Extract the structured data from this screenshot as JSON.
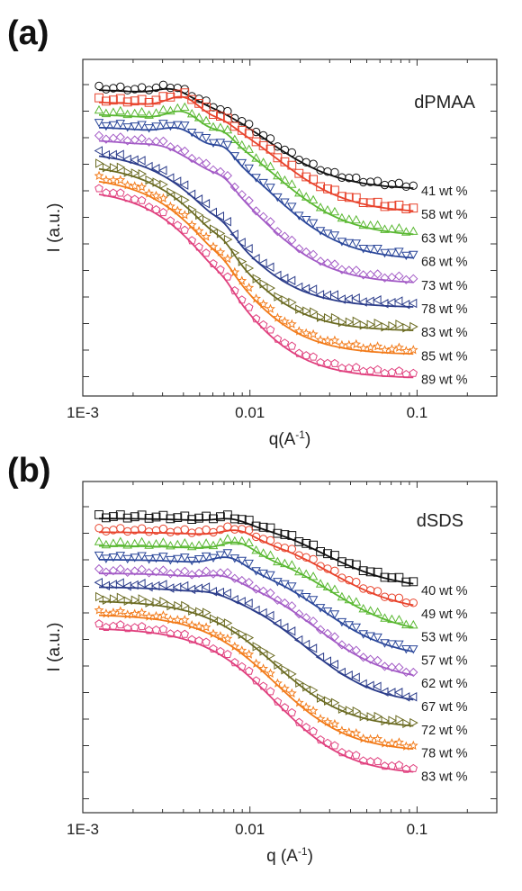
{
  "chart_data": [
    {
      "type": "scatter",
      "panel_label": "(a)",
      "sample": "dPMAA",
      "xlabel": "q(A",
      "xlabel_sup": "-1",
      "xlabel_close": ")",
      "ylabel": "I (a.u.)",
      "xscale": "log",
      "xlim": [
        0.001,
        0.3
      ],
      "xticks": [
        {
          "v": 0.001,
          "label": "1E-3"
        },
        {
          "v": 0.01,
          "label": "0.01"
        },
        {
          "v": 0.1,
          "label": "0.1"
        }
      ],
      "grid": false,
      "series": [
        {
          "name": "41 wt %",
          "color": "#111111",
          "marker": "circle",
          "low": 0.04,
          "high": 1.0,
          "peak_q": 0.0035,
          "peak": 0.07,
          "ripple": 0.0
        },
        {
          "name": "58 wt %",
          "color": "#e8432c",
          "marker": "square",
          "low": 0.03,
          "high": 0.9,
          "peak_q": 0.004,
          "peak": 0.1,
          "ripple": 0.02
        },
        {
          "name": "63 wt %",
          "color": "#5ab832",
          "marker": "triangle-up",
          "low": 0.03,
          "high": 0.88,
          "peak_q": 0.004,
          "peak": 0.08,
          "ripple": 0.04
        },
        {
          "name": "68 wt %",
          "color": "#2b479a",
          "marker": "triangle-down",
          "low": 0.02,
          "high": 0.86,
          "peak_q": 0.0038,
          "peak": 0.05,
          "ripple": 0.05
        },
        {
          "name": "73 wt %",
          "color": "#a35bc6",
          "marker": "diamond",
          "low": 0.03,
          "high": 0.85,
          "peak_q": 0.003,
          "peak": 0.02,
          "ripple": 0.03
        },
        {
          "name": "78 wt %",
          "color": "#2b3c8a",
          "marker": "triangle-left",
          "low": 0.03,
          "high": 0.9,
          "peak_q": 0.002,
          "peak": 0.0,
          "ripple": 0.03
        },
        {
          "name": "83 wt %",
          "color": "#6b6b22",
          "marker": "triangle-right",
          "low": 0.03,
          "high": 0.92,
          "peak_q": 0.002,
          "peak": 0.0,
          "ripple": 0.03
        },
        {
          "name": "85 wt %",
          "color": "#f27b1a",
          "marker": "star",
          "low": 0.03,
          "high": 0.9,
          "peak_q": 0.002,
          "peak": 0.0,
          "ripple": 0.02
        },
        {
          "name": "89 wt %",
          "color": "#e0407e",
          "marker": "pentagon",
          "low": 0.03,
          "high": 0.92,
          "peak_q": 0.002,
          "peak": 0.0,
          "ripple": 0.02
        }
      ]
    },
    {
      "type": "scatter",
      "panel_label": "(b)",
      "sample": "dSDS",
      "xlabel": "q (A",
      "xlabel_sup": "-1",
      "xlabel_close": ")",
      "ylabel": "I (a.u.)",
      "xscale": "log",
      "xlim": [
        0.001,
        0.3
      ],
      "xticks": [
        {
          "v": 0.001,
          "label": "1E-3"
        },
        {
          "v": 0.01,
          "label": "0.01"
        },
        {
          "v": 0.1,
          "label": "0.1"
        }
      ],
      "grid": false,
      "series": [
        {
          "name": "40 wt %",
          "color": "#111111",
          "marker": "square",
          "low": 0.04,
          "high": 0.95,
          "peak_q": 0.0078,
          "peak": 0.06,
          "ripple": 0.0
        },
        {
          "name": "49 wt %",
          "color": "#e8432c",
          "marker": "circle",
          "low": 0.03,
          "high": 0.88,
          "peak_q": 0.0085,
          "peak": 0.08,
          "ripple": 0.0
        },
        {
          "name": "53 wt %",
          "color": "#5ab832",
          "marker": "triangle-up",
          "low": 0.03,
          "high": 0.85,
          "peak_q": 0.0085,
          "peak": 0.09,
          "ripple": 0.0
        },
        {
          "name": "57 wt %",
          "color": "#2b479a",
          "marker": "triangle-down",
          "low": 0.03,
          "high": 0.88,
          "peak_q": 0.0075,
          "peak": 0.08,
          "ripple": 0.0
        },
        {
          "name": "62 wt %",
          "color": "#a35bc6",
          "marker": "diamond",
          "low": 0.03,
          "high": 0.88,
          "peak_q": 0.007,
          "peak": 0.04,
          "ripple": 0.0
        },
        {
          "name": "67 wt %",
          "color": "#2b3c8a",
          "marker": "triangle-left",
          "low": 0.03,
          "high": 0.9,
          "peak_q": 0.006,
          "peak": 0.02,
          "ripple": 0.0
        },
        {
          "name": "72 wt %",
          "color": "#6b6b22",
          "marker": "triangle-right",
          "low": 0.03,
          "high": 0.92,
          "peak_q": 0.004,
          "peak": 0.0,
          "ripple": 0.0
        },
        {
          "name": "78 wt %",
          "color": "#f27b1a",
          "marker": "star",
          "low": 0.03,
          "high": 0.92,
          "peak_q": 0.004,
          "peak": 0.0,
          "ripple": 0.0
        },
        {
          "name": "83 wt %",
          "color": "#e0407e",
          "marker": "pentagon",
          "low": 0.03,
          "high": 0.92,
          "peak_q": 0.004,
          "peak": 0.0,
          "ripple": 0.0
        }
      ]
    }
  ]
}
